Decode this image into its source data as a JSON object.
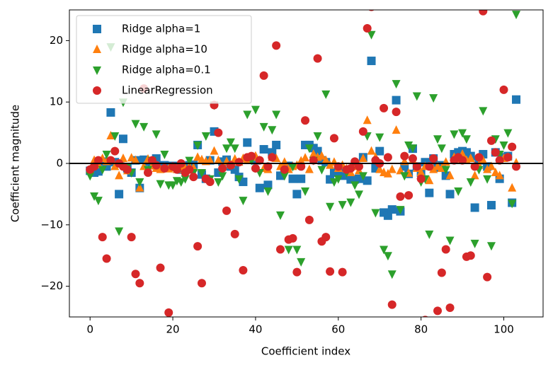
{
  "chart_data": {
    "type": "scatter",
    "xlabel": "Coefficient index",
    "ylabel": "Coefficient magnitude",
    "xlim": [
      -5,
      109.5
    ],
    "ylim": [
      -25,
      25
    ],
    "xticks": [
      0,
      20,
      40,
      60,
      80,
      100
    ],
    "yticks": [
      {
        "value": -20,
        "label": "−20"
      },
      {
        "value": -10,
        "label": "−10"
      },
      0,
      10,
      20
    ],
    "hline": 0,
    "legend": "upper left",
    "series": [
      {
        "name": "Ridge alpha=1",
        "color": "#1f77b4",
        "marker": "square",
        "values": [
          -1.2,
          -1.5,
          -1.3,
          0.3,
          -0.5,
          8.3,
          0.2,
          -5.0,
          4.0,
          -0.8,
          -1.5,
          0.5,
          -4.0,
          0.6,
          0.3,
          0.1,
          0.8,
          -0.5,
          -0.3,
          -0.6,
          -0.4,
          -0.5,
          -1.0,
          -0.8,
          -0.3,
          -0.2,
          3.0,
          -1.8,
          -2.5,
          0.5,
          5.2,
          -1.5,
          0.3,
          0.6,
          -0.5,
          -1.0,
          -2.2,
          -3.0,
          3.4,
          0.8,
          0.5,
          -4.0,
          2.3,
          -3.5,
          1.8,
          3.0,
          -2.0,
          -0.8,
          -0.4,
          -2.5,
          -5.0,
          -2.5,
          3.0,
          3.0,
          2.5,
          2.0,
          0.5,
          0.2,
          -2.6,
          -1.5,
          -1.0,
          -2.0,
          -1.5,
          -2.6,
          -2.6,
          -2.5,
          1.0,
          -2.8,
          16.7,
          -0.8,
          2.0,
          -8.0,
          -8.5,
          -7.5,
          10.3,
          -7.8,
          -0.5,
          -1.7,
          2.4,
          -0.5,
          -1.5,
          0.2,
          -4.8,
          0.8,
          -0.7,
          -0.3,
          -2.0,
          -5.0,
          1.5,
          1.8,
          2.0,
          1.8,
          1.2,
          -7.2,
          0.5,
          1.5,
          -0.5,
          -6.8,
          1.8,
          -2.5,
          1.0,
          1.2,
          -6.4,
          10.4
        ]
      },
      {
        "name": "Ridge alpha=10",
        "color": "#ff7f0e",
        "marker": "triangle-up",
        "values": [
          -1.0,
          0.5,
          -0.2,
          0.8,
          0.3,
          4.5,
          -0.5,
          -2.0,
          0.8,
          -1.2,
          0.9,
          0.5,
          -4.0,
          -0.5,
          0.7,
          -0.4,
          -0.8,
          -1.0,
          -0.6,
          -0.9,
          -0.7,
          -1.0,
          -0.6,
          -0.8,
          -0.5,
          -0.7,
          1.0,
          0.6,
          0.3,
          0.5,
          2.0,
          0.5,
          -0.5,
          0.3,
          -0.2,
          0.7,
          0.2,
          0.8,
          0.5,
          1.0,
          1.2,
          0.5,
          -0.8,
          -1.0,
          1.0,
          0.8,
          -0.5,
          0.2,
          -1.0,
          -0.5,
          -0.3,
          0.4,
          0.9,
          -1.0,
          1.5,
          1.0,
          1.2,
          0.5,
          -0.3,
          0.2,
          -0.8,
          -0.3,
          -0.9,
          -1.5,
          -0.5,
          -1.2,
          0.8,
          7.0,
          2.0,
          1.0,
          -1.0,
          -1.5,
          -1.7,
          -1.0,
          5.4,
          -1.2,
          0.3,
          -1.6,
          0.5,
          -0.8,
          -1.5,
          -0.5,
          -2.8,
          -1.0,
          -0.5,
          -0.8,
          0.2,
          -2.0,
          1.0,
          0.7,
          1.5,
          0.5,
          0.8,
          -2.0,
          -0.3,
          0.5,
          -1.0,
          -0.5,
          -1.5,
          -2.0,
          0.8,
          1.0,
          -4.0,
          0.1
        ]
      },
      {
        "name": "Ridge alpha=0.1",
        "color": "#2ca02c",
        "marker": "triangle-down",
        "values": [
          -2.0,
          -5.3,
          -6.0,
          -1.0,
          1.5,
          19.0,
          4.5,
          -11.0,
          10.0,
          -0.5,
          -1.5,
          6.5,
          -3.0,
          6.0,
          -1.0,
          0.5,
          4.8,
          -3.3,
          1.5,
          -3.5,
          -3.5,
          -2.8,
          -3.0,
          -2.5,
          0.5,
          -1.5,
          3.0,
          -1.5,
          4.5,
          -2.5,
          9.5,
          -3.0,
          -2.0,
          2.5,
          3.5,
          2.5,
          -2.5,
          -6.0,
          8.0,
          0.5,
          8.8,
          -1.5,
          6.0,
          -4.5,
          5.5,
          8.0,
          -8.4,
          -2.0,
          -14.0,
          -0.5,
          -14.0,
          -16.0,
          -4.5,
          2.5,
          0.5,
          4.5,
          -1.0,
          11.3,
          -7.0,
          -3.0,
          -2.5,
          -6.7,
          -1.5,
          -6.3,
          -3.5,
          -5.0,
          -2.0,
          4.5,
          21.0,
          -8.0,
          4.3,
          -14.0,
          -15.0,
          -18.0,
          13.0,
          -7.5,
          -2.0,
          3.0,
          2.5,
          11.0,
          -3.0,
          -2.5,
          -11.5,
          10.7,
          4.0,
          2.5,
          -1.0,
          -12.5,
          4.8,
          -4.5,
          5.0,
          4.0,
          -3.0,
          -13.0,
          -1.0,
          8.6,
          -2.5,
          -13.4,
          4.0,
          1.5,
          3.0,
          5.0,
          -6.5,
          24.3
        ]
      },
      {
        "name": "LinearRegression",
        "color": "#d62728",
        "marker": "circle",
        "values": [
          -1.0,
          -0.5,
          0.5,
          -12.0,
          -15.5,
          0.5,
          2.0,
          0.0,
          -0.5,
          -1.0,
          -12.0,
          -18.0,
          -19.5,
          12.2,
          -1.5,
          0.5,
          -0.3,
          -17.0,
          -0.8,
          -24.3,
          -0.5,
          -1.0,
          0.0,
          -1.5,
          -1.0,
          -2.2,
          -13.5,
          -19.5,
          -2.5,
          -3.0,
          9.5,
          5.0,
          -0.8,
          -7.7,
          -0.3,
          -11.5,
          0.2,
          -17.4,
          1.0,
          1.2,
          -0.8,
          0.5,
          14.3,
          -0.5,
          1.0,
          19.2,
          -14.0,
          -1.0,
          -12.4,
          -12.2,
          -17.7,
          -0.5,
          7.0,
          -9.2,
          0.5,
          17.1,
          -12.7,
          -12.0,
          -17.6,
          4.1,
          -0.5,
          -17.7,
          -1.0,
          -0.8,
          0.3,
          -0.5,
          5.2,
          22.0,
          25.5,
          0.5,
          0.0,
          9.0,
          1.0,
          -23.0,
          8.4,
          -5.4,
          1.2,
          -5.2,
          0.8,
          -0.5,
          -2.5,
          -25.5,
          -0.5,
          0.8,
          -24.0,
          -17.8,
          -14.0,
          -23.5,
          0.5,
          1.0,
          0.5,
          -15.2,
          -15.0,
          -0.5,
          1.0,
          24.8,
          -18.5,
          3.7,
          1.8,
          0.5,
          12.0,
          1.0,
          2.7,
          -0.5
        ]
      }
    ]
  }
}
